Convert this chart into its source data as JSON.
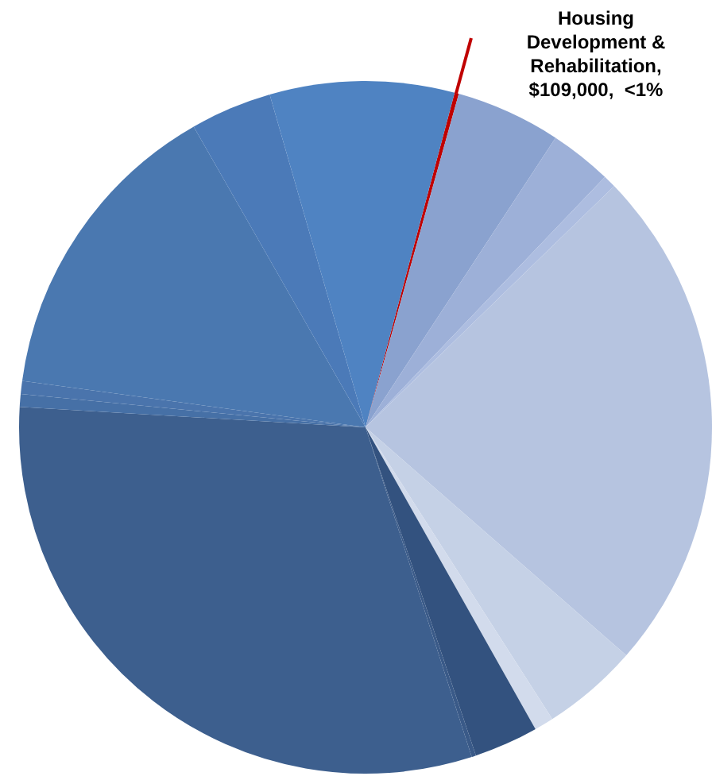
{
  "chart_data": {
    "type": "pie",
    "categories": [
      null,
      null,
      null,
      null,
      null,
      null,
      null,
      null,
      null,
      null,
      null,
      null,
      null,
      null,
      null
    ],
    "values": [
      0.2,
      4.9,
      2.9,
      0.6,
      23.7,
      4.5,
      0.9,
      3.0,
      0.2,
      30.9,
      0.6,
      0.6,
      14.6,
      3.8,
      8.6
    ],
    "annotations": [
      "Housing Development & Rehabilitation, $109,000,  <1%"
    ],
    "colors": [
      "#c00000",
      "#8aa2cf",
      "#9db0d8",
      "#adbde0",
      "#b6c4e0",
      "#c5d1e6",
      "#d2dbec",
      "#33527f",
      "#3a5a88",
      "#3d5f8e",
      "#4670a6",
      "#4a74ac",
      "#4a78b0",
      "#4b7ab8",
      "#4f83c2"
    ],
    "legend": false
  }
}
